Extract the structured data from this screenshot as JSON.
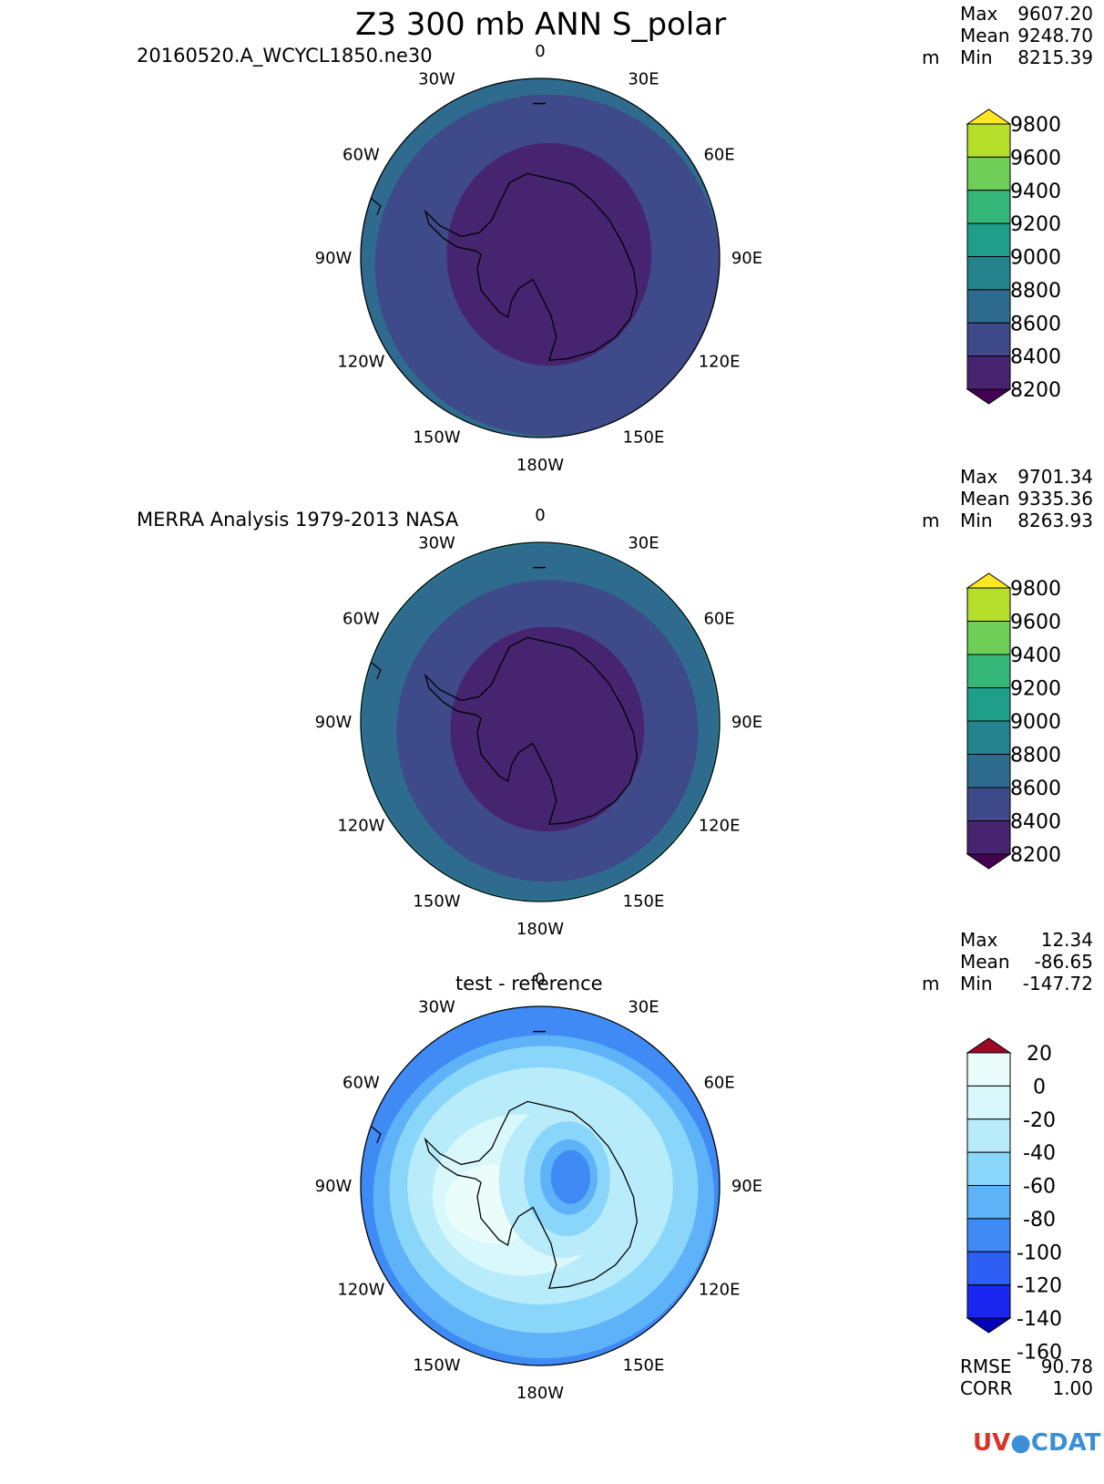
{
  "title": "Z3 300 mb ANN S_polar",
  "logo_text": "UV-CDAT",
  "units": "m",
  "stat_labels": {
    "max": "Max",
    "mean": "Mean",
    "min": "Min",
    "rmse": "RMSE",
    "corr": "CORR"
  },
  "colors": {
    "test_levels": [
      "#440154",
      "#46246f",
      "#3e4a89",
      "#2f6b8e",
      "#25838e",
      "#1f9e89",
      "#35b779",
      "#6ece58",
      "#b5de2b",
      "#fde725"
    ],
    "diff_levels": [
      "#0000b8",
      "#1a26f0",
      "#2e5ff5",
      "#3f8af5",
      "#5eb2f7",
      "#8ad6fb",
      "#b9ecfb",
      "#d9f8fb",
      "#ebfdfa",
      "#9b0a26"
    ]
  },
  "chart_data": [
    {
      "type": "heatmap",
      "subtitle": "20160520.A_WCYCL1850.ne30",
      "stats": {
        "max": "9607.20",
        "mean": "9248.70",
        "min": "8215.39"
      },
      "colorbar_labels": [
        "9800",
        "9600",
        "9400",
        "9200",
        "9000",
        "8800",
        "8600",
        "8400",
        "8200"
      ],
      "lon_labels": [
        "0",
        "30E",
        "60E",
        "90E",
        "120E",
        "150E",
        "180W",
        "150W",
        "120W",
        "90W",
        "60W",
        "30W"
      ]
    },
    {
      "type": "heatmap",
      "subtitle": "MERRA Analysis 1979-2013 NASA",
      "stats": {
        "max": "9701.34",
        "mean": "9335.36",
        "min": "8263.93"
      },
      "colorbar_labels": [
        "9800",
        "9600",
        "9400",
        "9200",
        "9000",
        "8800",
        "8600",
        "8400",
        "8200"
      ],
      "lon_labels": [
        "0",
        "30E",
        "60E",
        "90E",
        "120E",
        "150E",
        "180W",
        "150W",
        "120W",
        "90W",
        "60W",
        "30W"
      ]
    },
    {
      "type": "heatmap",
      "subtitle": "test - reference",
      "stats": {
        "max": "12.34",
        "mean": "-86.65",
        "min": "-147.72",
        "rmse": "90.78",
        "corr": "1.00"
      },
      "colorbar_labels": [
        "20",
        "0",
        "-20",
        "-40",
        "-60",
        "-80",
        "-100",
        "-120",
        "-140",
        "-160"
      ],
      "lon_labels": [
        "0",
        "30E",
        "60E",
        "90E",
        "120E",
        "150E",
        "180W",
        "150W",
        "120W",
        "90W",
        "60W",
        "30W"
      ]
    }
  ]
}
